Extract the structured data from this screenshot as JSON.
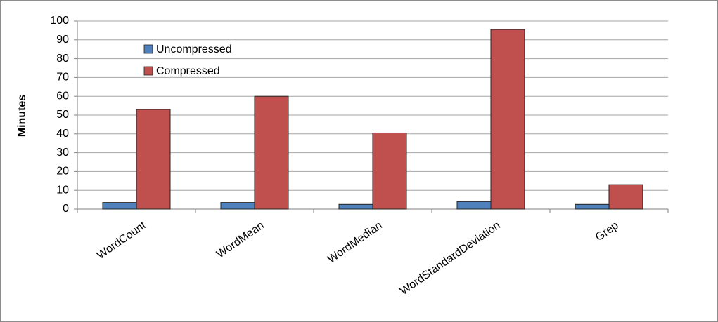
{
  "chart_data": {
    "type": "bar",
    "y_label": "Minutes",
    "categories": [
      "WordCount",
      "WordMean",
      "WordMedian",
      "WordStandardDeviation",
      "Grep"
    ],
    "series": [
      {
        "name": "Uncompressed",
        "color": "#4f81bd",
        "values": [
          3.5,
          3.5,
          2.5,
          4,
          2.5
        ]
      },
      {
        "name": "Compressed",
        "color": "#c0504d",
        "values": [
          53,
          60,
          40.5,
          95.5,
          13
        ]
      }
    ],
    "ylim": [
      0,
      100
    ],
    "yticks": [
      0,
      10,
      20,
      30,
      40,
      50,
      60,
      70,
      80,
      90,
      100
    ],
    "grid": true
  }
}
